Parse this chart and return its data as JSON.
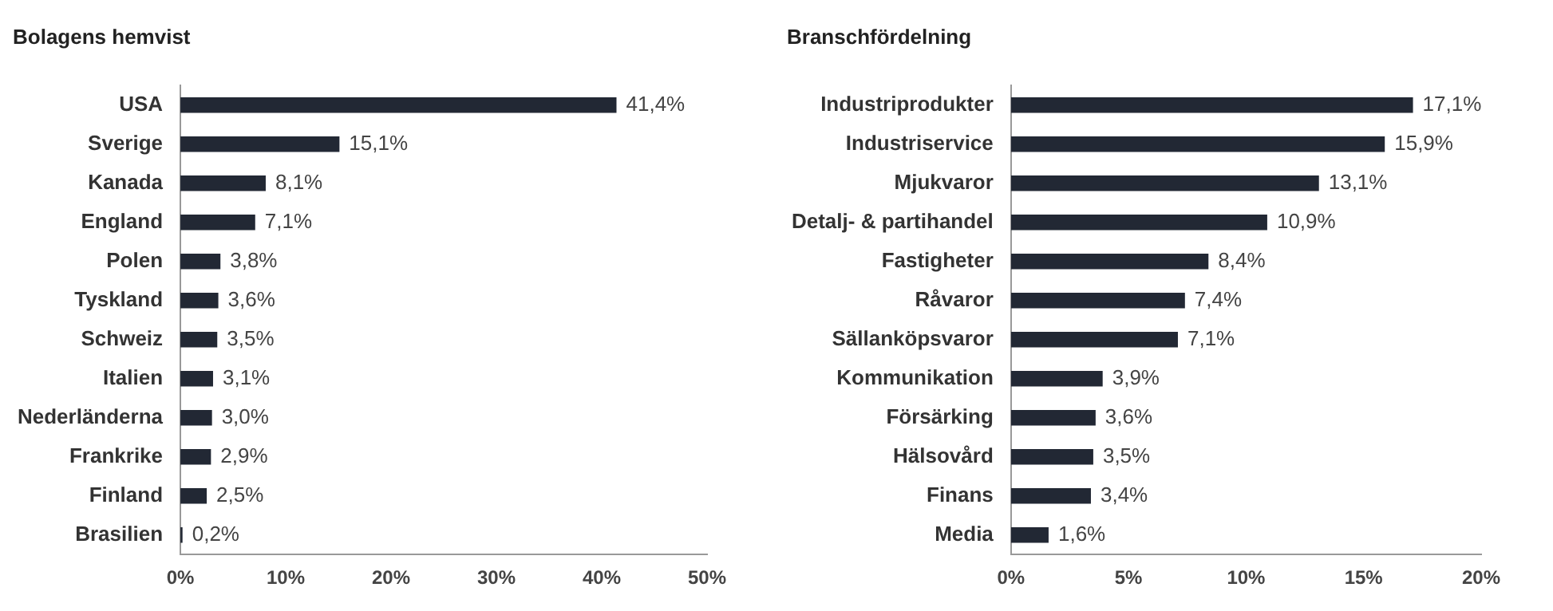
{
  "chart_data": [
    {
      "type": "bar",
      "orientation": "horizontal",
      "title": "Bolagens hemvist",
      "categories": [
        "USA",
        "Sverige",
        "Kanada",
        "England",
        "Polen",
        "Tyskland",
        "Schweiz",
        "Italien",
        "Nederländerna",
        "Frankrike",
        "Finland",
        "Brasilien"
      ],
      "values": [
        41.4,
        15.1,
        8.1,
        7.1,
        3.8,
        3.6,
        3.5,
        3.1,
        3.0,
        2.9,
        2.5,
        0.2
      ],
      "value_labels": [
        "41,4%",
        "15,1%",
        "8,1%",
        "7,1%",
        "3,8%",
        "3,6%",
        "3,5%",
        "3,1%",
        "3,0%",
        "2,9%",
        "2,5%",
        "0,2%"
      ],
      "color": "#222834",
      "xlim": [
        0,
        50
      ],
      "xticks": [
        {
          "value": 0,
          "label": "0%"
        },
        {
          "value": 10,
          "label": "10%"
        },
        {
          "value": 20,
          "label": "20%"
        },
        {
          "value": 30,
          "label": "30%"
        },
        {
          "value": 40,
          "label": "40%"
        },
        {
          "value": 50,
          "label": "50%"
        }
      ],
      "grid": false,
      "legend": false
    },
    {
      "type": "bar",
      "orientation": "horizontal",
      "title": "Branschfördelning",
      "categories": [
        "Industriprodukter",
        "Industriservice",
        "Mjukvaror",
        "Detalj- & partihandel",
        "Fastigheter",
        "Råvaror",
        "Sällanköpsvaror",
        "Kommunikation",
        "Försärking",
        "Hälsovård",
        "Finans",
        "Media"
      ],
      "values": [
        17.1,
        15.9,
        13.1,
        10.9,
        8.4,
        7.4,
        7.1,
        3.9,
        3.6,
        3.5,
        3.4,
        1.6
      ],
      "value_labels": [
        "17,1%",
        "15,9%",
        "13,1%",
        "10,9%",
        "8,4%",
        "7,4%",
        "7,1%",
        "3,9%",
        "3,6%",
        "3,5%",
        "3,4%",
        "1,6%"
      ],
      "color": "#222834",
      "xlim": [
        0,
        20
      ],
      "xticks": [
        {
          "value": 0,
          "label": "0%"
        },
        {
          "value": 5,
          "label": "5%"
        },
        {
          "value": 10,
          "label": "10%"
        },
        {
          "value": 15,
          "label": "15%"
        },
        {
          "value": 20,
          "label": "20%"
        }
      ],
      "grid": false,
      "legend": false
    }
  ]
}
